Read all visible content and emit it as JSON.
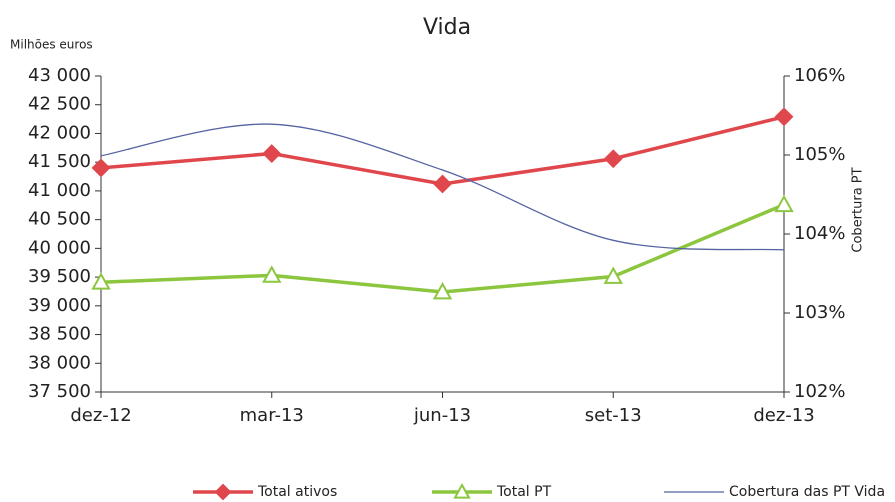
{
  "chart_data": {
    "type": "line",
    "title": "Vida",
    "ylabel": "Milhões euros",
    "y2label": "Cobertura PT",
    "categories": [
      "dez-12",
      "mar-13",
      "jun-13",
      "set-13",
      "dez-13"
    ],
    "series": [
      {
        "name": "Total ativos",
        "color": "#e0474c",
        "marker": "diamond",
        "values": [
          41400,
          41650,
          41120,
          41560,
          42290
        ]
      },
      {
        "name": "Total PT",
        "color": "#8cc63f",
        "marker": "triangle",
        "values": [
          39410,
          39530,
          39240,
          39510,
          40760
        ]
      },
      {
        "name": "Cobertura das PT Vida",
        "color": "#5563a0",
        "marker": "none",
        "smooth": true,
        "axis": "y2",
        "values": [
          104.99,
          105.39,
          104.81,
          103.92,
          103.8
        ]
      }
    ],
    "ylim": [
      37500,
      43000
    ],
    "yticks": [
      {
        "value": 37500,
        "label": "37 500"
      },
      {
        "value": 38000,
        "label": "38 000"
      },
      {
        "value": 38500,
        "label": "38 500"
      },
      {
        "value": 39000,
        "label": "39 000"
      },
      {
        "value": 39500,
        "label": "39 500"
      },
      {
        "value": 40000,
        "label": "40 000"
      },
      {
        "value": 40500,
        "label": "40 500"
      },
      {
        "value": 41000,
        "label": "41 000"
      },
      {
        "value": 41500,
        "label": "41 500"
      },
      {
        "value": 42000,
        "label": "42 000"
      },
      {
        "value": 42500,
        "label": "42 500"
      },
      {
        "value": 43000,
        "label": "43 000"
      }
    ],
    "y2lim": [
      102,
      106
    ],
    "y2ticks": [
      {
        "value": 102,
        "label": "102%"
      },
      {
        "value": 103,
        "label": "103%"
      },
      {
        "value": 104,
        "label": "104%"
      },
      {
        "value": 105,
        "label": "105%"
      },
      {
        "value": 106,
        "label": "106%"
      }
    ],
    "grid": false,
    "legend": "bottom"
  }
}
